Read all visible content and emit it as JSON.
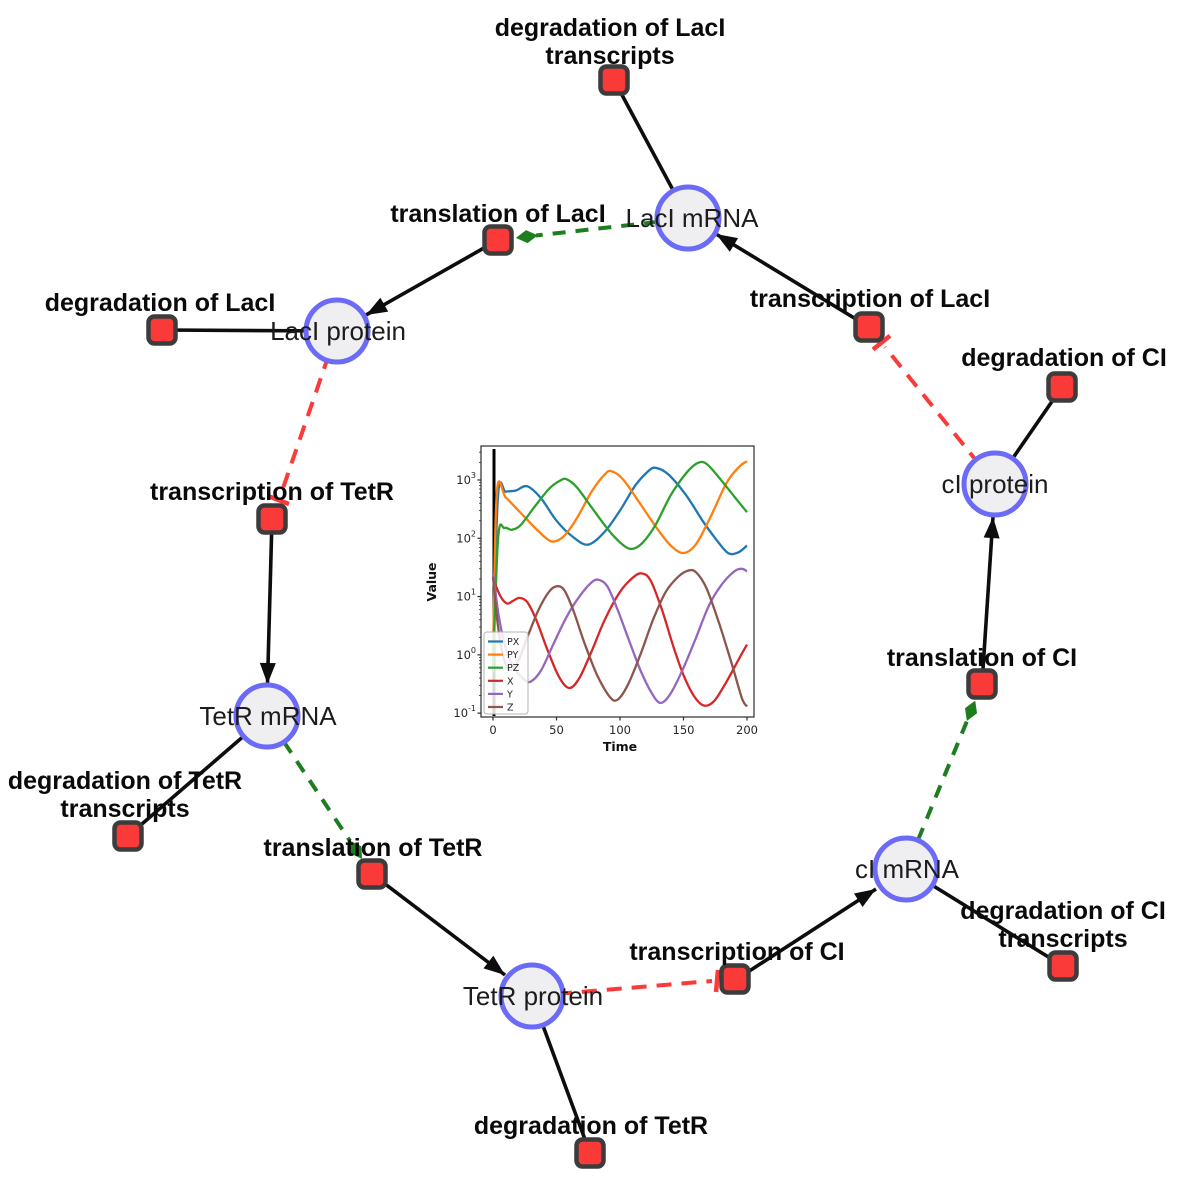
{
  "diagram": {
    "species": [
      {
        "id": "laci-mrna",
        "label": "LacI mRNA"
      },
      {
        "id": "laci-protein",
        "label": "LacI protein"
      },
      {
        "id": "ci-protein",
        "label": "cI protein"
      },
      {
        "id": "tetr-mrna",
        "label": "TetR mRNA"
      },
      {
        "id": "tetr-protein",
        "label": "TetR protein"
      },
      {
        "id": "ci-mrna",
        "label": "cI mRNA"
      }
    ],
    "reactions": [
      {
        "id": "degradation-laci-transcripts",
        "lines": [
          "degradation of LacI",
          "transcripts"
        ]
      },
      {
        "id": "translation-laci",
        "lines": [
          "translation of LacI"
        ]
      },
      {
        "id": "degradation-laci",
        "lines": [
          "degradation of LacI"
        ]
      },
      {
        "id": "transcription-laci",
        "lines": [
          "transcription of LacI"
        ]
      },
      {
        "id": "degradation-ci",
        "lines": [
          "degradation of CI"
        ]
      },
      {
        "id": "transcription-tetr",
        "lines": [
          "transcription of TetR"
        ]
      },
      {
        "id": "translation-ci",
        "lines": [
          "translation of CI"
        ]
      },
      {
        "id": "degradation-tetr-transcripts",
        "lines": [
          "degradation of TetR",
          "transcripts"
        ]
      },
      {
        "id": "translation-tetr",
        "lines": [
          "translation of TetR"
        ]
      },
      {
        "id": "transcription-ci",
        "lines": [
          "transcription of CI"
        ]
      },
      {
        "id": "degradation-ci-transcripts",
        "lines": [
          "degradation of CI",
          "transcripts"
        ]
      },
      {
        "id": "degradation-tetr",
        "lines": [
          "degradation of TetR"
        ]
      }
    ],
    "colors": {
      "species_fill": "#efeff1",
      "species_stroke": "#6b6bf7",
      "reaction_fill": "#fa3a39",
      "reaction_stroke": "#3c3c3c",
      "edge_black": "#0d0d0d",
      "inhibition_red": "#fb3a3a",
      "modifier_green": "#1e7d1e"
    }
  },
  "chart_data": {
    "type": "line",
    "title": "",
    "xlabel": "Time",
    "ylabel": "Value",
    "x_ticks": [
      0,
      50,
      100,
      150,
      200
    ],
    "y_scale": "log",
    "y_tick_exponents": [
      -1,
      0,
      1,
      2,
      3
    ],
    "xlim": [
      -9,
      206
    ],
    "ylim": [
      0.083,
      3800
    ],
    "grid": false,
    "legend_position": "lower left",
    "event_line_x": 0,
    "series": [
      {
        "name": "PX",
        "color": "#1f77b4",
        "points": [
          [
            0,
            1.2
          ],
          [
            4,
            560
          ],
          [
            10,
            630
          ],
          [
            18,
            660
          ],
          [
            27,
            780
          ],
          [
            38,
            480
          ],
          [
            50,
            200
          ],
          [
            63,
            105
          ],
          [
            75,
            78
          ],
          [
            88,
            130
          ],
          [
            100,
            300
          ],
          [
            112,
            800
          ],
          [
            122,
            1400
          ],
          [
            128,
            1620
          ],
          [
            138,
            1250
          ],
          [
            152,
            550
          ],
          [
            165,
            200
          ],
          [
            175,
            100
          ],
          [
            185,
            56
          ],
          [
            193,
            57
          ],
          [
            200,
            75
          ]
        ]
      },
      {
        "name": "PY",
        "color": "#ff7f0e",
        "points": [
          [
            0,
            0.8
          ],
          [
            3,
            600
          ],
          [
            10,
            500
          ],
          [
            20,
            300
          ],
          [
            32,
            160
          ],
          [
            42,
            100
          ],
          [
            48,
            88
          ],
          [
            56,
            110
          ],
          [
            66,
            220
          ],
          [
            78,
            650
          ],
          [
            88,
            1250
          ],
          [
            93,
            1420
          ],
          [
            102,
            1050
          ],
          [
            115,
            420
          ],
          [
            128,
            160
          ],
          [
            140,
            75
          ],
          [
            150,
            56
          ],
          [
            160,
            80
          ],
          [
            172,
            250
          ],
          [
            184,
            900
          ],
          [
            194,
            1700
          ],
          [
            200,
            2100
          ]
        ]
      },
      {
        "name": "PZ",
        "color": "#2ca02c",
        "points": [
          [
            0,
            0.5
          ],
          [
            4,
            100
          ],
          [
            9,
            150
          ],
          [
            15,
            140
          ],
          [
            22,
            170
          ],
          [
            32,
            330
          ],
          [
            44,
            700
          ],
          [
            53,
            980
          ],
          [
            58,
            1030
          ],
          [
            66,
            750
          ],
          [
            78,
            330
          ],
          [
            92,
            130
          ],
          [
            103,
            75
          ],
          [
            110,
            66
          ],
          [
            118,
            85
          ],
          [
            128,
            170
          ],
          [
            140,
            550
          ],
          [
            152,
            1300
          ],
          [
            161,
            1950
          ],
          [
            168,
            1900
          ],
          [
            178,
            1100
          ],
          [
            190,
            520
          ],
          [
            200,
            280
          ]
        ]
      },
      {
        "name": "X",
        "color": "#d62728",
        "points": [
          [
            0,
            20
          ],
          [
            6,
            10
          ],
          [
            11,
            7.6
          ],
          [
            16,
            8.5
          ],
          [
            21,
            9.5
          ],
          [
            27,
            8
          ],
          [
            34,
            4
          ],
          [
            43,
            1.2
          ],
          [
            52,
            0.42
          ],
          [
            60,
            0.27
          ],
          [
            68,
            0.4
          ],
          [
            78,
            1.2
          ],
          [
            88,
            4
          ],
          [
            100,
            12
          ],
          [
            110,
            21
          ],
          [
            117,
            25
          ],
          [
            124,
            19
          ],
          [
            133,
            6
          ],
          [
            142,
            1.4
          ],
          [
            150,
            0.45
          ],
          [
            158,
            0.2
          ],
          [
            166,
            0.135
          ],
          [
            174,
            0.16
          ],
          [
            184,
            0.35
          ],
          [
            193,
            0.8
          ],
          [
            200,
            1.5
          ]
        ]
      },
      {
        "name": "Y",
        "color": "#9467bd",
        "points": [
          [
            0,
            25
          ],
          [
            5,
            4
          ],
          [
            11,
            1.1
          ],
          [
            18,
            0.55
          ],
          [
            25,
            0.37
          ],
          [
            30,
            0.35
          ],
          [
            38,
            0.55
          ],
          [
            48,
            1.6
          ],
          [
            58,
            4.5
          ],
          [
            68,
            10
          ],
          [
            77,
            17
          ],
          [
            83,
            19.5
          ],
          [
            90,
            15
          ],
          [
            98,
            6
          ],
          [
            107,
            1.8
          ],
          [
            116,
            0.55
          ],
          [
            125,
            0.22
          ],
          [
            132,
            0.15
          ],
          [
            140,
            0.22
          ],
          [
            150,
            0.6
          ],
          [
            160,
            2
          ],
          [
            170,
            7
          ],
          [
            180,
            16
          ],
          [
            190,
            27
          ],
          [
            196,
            30
          ],
          [
            200,
            27
          ]
        ]
      },
      {
        "name": "Z",
        "color": "#8c564b",
        "points": [
          [
            0,
            22
          ],
          [
            4,
            3
          ],
          [
            9,
            0.8
          ],
          [
            14,
            0.55
          ],
          [
            20,
            0.8
          ],
          [
            27,
            2
          ],
          [
            36,
            6
          ],
          [
            44,
            12
          ],
          [
            50,
            15
          ],
          [
            56,
            13
          ],
          [
            63,
            6
          ],
          [
            72,
            1.6
          ],
          [
            82,
            0.45
          ],
          [
            92,
            0.19
          ],
          [
            98,
            0.17
          ],
          [
            106,
            0.3
          ],
          [
            116,
            1
          ],
          [
            126,
            4
          ],
          [
            136,
            12
          ],
          [
            146,
            22
          ],
          [
            154,
            28
          ],
          [
            160,
            26
          ],
          [
            168,
            14
          ],
          [
            178,
            3.5
          ],
          [
            188,
            0.7
          ],
          [
            196,
            0.18
          ],
          [
            200,
            0.13
          ]
        ]
      }
    ]
  }
}
